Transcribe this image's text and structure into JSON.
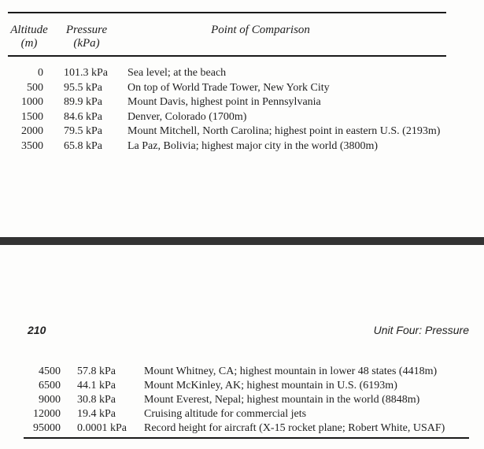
{
  "table": {
    "headers": {
      "altitude_label": "Altitude",
      "altitude_unit": "(m)",
      "pressure_label": "Pressure",
      "pressure_unit": "(kPa)",
      "comparison_label": "Point of Comparison"
    },
    "upper_rows": [
      {
        "altitude": "0",
        "pressure": "101.3 kPa",
        "comparison": "Sea level; at the beach"
      },
      {
        "altitude": "500",
        "pressure": "95.5 kPa",
        "comparison": "On top of World Trade Tower, New York City"
      },
      {
        "altitude": "1000",
        "pressure": "89.9 kPa",
        "comparison": "Mount Davis, highest point in Pennsylvania"
      },
      {
        "altitude": "1500",
        "pressure": "84.6 kPa",
        "comparison": "Denver, Colorado (1700m)"
      },
      {
        "altitude": "2000",
        "pressure": "79.5 kPa",
        "comparison": "Mount Mitchell, North Carolina; highest point in eastern U.S. (2193m)"
      },
      {
        "altitude": "3500",
        "pressure": "65.8 kPa",
        "comparison": "La Paz, Bolivia; highest major city in the world (3800m)"
      }
    ],
    "lower_rows": [
      {
        "altitude": "4500",
        "pressure": "57.8 kPa",
        "comparison": "Mount Whitney, CA; highest mountain in lower 48 states (4418m)"
      },
      {
        "altitude": "6500",
        "pressure": "44.1 kPa",
        "comparison": "Mount McKinley, AK; highest mountain in U.S. (6193m)"
      },
      {
        "altitude": "9000",
        "pressure": "30.8 kPa",
        "comparison": "Mount Everest, Nepal; highest mountain in the world (8848m)"
      },
      {
        "altitude": "12000",
        "pressure": "19.4 kPa",
        "comparison": "Cruising altitude for commercial jets"
      },
      {
        "altitude": "95000",
        "pressure": "0.0001 kPa",
        "comparison": "Record height for aircraft (X-15 rocket plane; Robert White, USAF)"
      }
    ]
  },
  "footer": {
    "page_number": "210",
    "section_title": "Unit Four: Pressure"
  },
  "colors": {
    "divider_bar": "#333333",
    "rule": "#1a1a1a",
    "text": "#1f1f1f",
    "background": "#fdfdfc"
  }
}
